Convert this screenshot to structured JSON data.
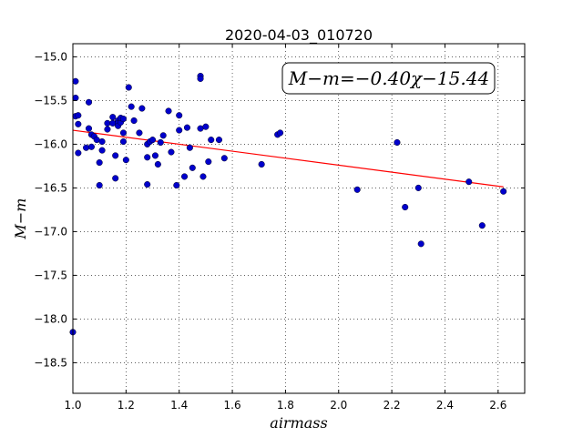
{
  "chart_data": {
    "type": "scatter",
    "title": "2020-04-03_010720",
    "xlabel": "airmass",
    "ylabel": "M−m",
    "xlim": [
      1.0,
      2.7
    ],
    "ylim": [
      -18.85,
      -14.85
    ],
    "y_inverted": true,
    "xticks": [
      1.0,
      1.2,
      1.4,
      1.6,
      1.8,
      2.0,
      2.2,
      2.4,
      2.6
    ],
    "xtick_labels": [
      "1.0",
      "1.2",
      "1.4",
      "1.6",
      "1.8",
      "2.0",
      "2.2",
      "2.4",
      "2.6"
    ],
    "yticks": [
      -15.0,
      -15.5,
      -16.0,
      -16.5,
      -17.0,
      -17.5,
      -18.0,
      -18.5
    ],
    "ytick_labels": [
      "−15.0",
      "−15.5",
      "−16.0",
      "−16.5",
      "−17.0",
      "−17.5",
      "−18.0",
      "−18.5"
    ],
    "grid": true,
    "annotation": "M−m=−0.40χ−15.44",
    "fit": {
      "slope": -0.4,
      "intercept": -15.44,
      "x_range": [
        1.0,
        2.62
      ],
      "color": "#ff0000"
    },
    "series": [
      {
        "color": "#0000cc",
        "x": [
          1.0,
          1.01,
          1.01,
          1.01,
          1.02,
          1.02,
          1.02,
          1.05,
          1.06,
          1.06,
          1.07,
          1.07,
          1.08,
          1.09,
          1.1,
          1.1,
          1.11,
          1.11,
          1.13,
          1.13,
          1.15,
          1.15,
          1.16,
          1.16,
          1.17,
          1.17,
          1.17,
          1.18,
          1.18,
          1.19,
          1.19,
          1.19,
          1.2,
          1.21,
          1.22,
          1.23,
          1.25,
          1.26,
          1.28,
          1.28,
          1.28,
          1.29,
          1.3,
          1.31,
          1.32,
          1.33,
          1.34,
          1.36,
          1.37,
          1.39,
          1.4,
          1.4,
          1.42,
          1.43,
          1.44,
          1.45,
          1.48,
          1.48,
          1.48,
          1.49,
          1.5,
          1.51,
          1.52,
          1.55,
          1.57,
          1.71,
          1.77,
          1.78,
          2.07,
          2.22,
          2.25,
          2.3,
          2.31,
          2.49,
          2.54,
          2.62
        ],
        "y": [
          -18.15,
          -15.28,
          -15.47,
          -15.68,
          -15.67,
          -15.77,
          -16.1,
          -16.04,
          -15.52,
          -15.82,
          -15.89,
          -16.03,
          -15.91,
          -15.95,
          -16.21,
          -16.47,
          -16.07,
          -15.97,
          -15.76,
          -15.83,
          -15.76,
          -15.69,
          -16.13,
          -16.39,
          -15.73,
          -15.76,
          -15.79,
          -15.75,
          -15.7,
          -15.87,
          -15.71,
          -15.97,
          -16.18,
          -15.35,
          -15.57,
          -15.73,
          -15.87,
          -15.59,
          -16.0,
          -16.15,
          -16.46,
          -15.97,
          -15.95,
          -16.13,
          -16.23,
          -15.98,
          -15.9,
          -15.62,
          -16.09,
          -16.47,
          -15.84,
          -15.67,
          -16.37,
          -15.81,
          -16.04,
          -16.27,
          -15.22,
          -15.25,
          -15.82,
          -16.37,
          -15.8,
          -16.2,
          -15.95,
          -15.95,
          -16.16,
          -16.23,
          -15.89,
          -15.87,
          -16.52,
          -15.98,
          -16.72,
          -16.5,
          -17.14,
          -16.43,
          -16.93,
          -16.54
        ]
      }
    ]
  }
}
